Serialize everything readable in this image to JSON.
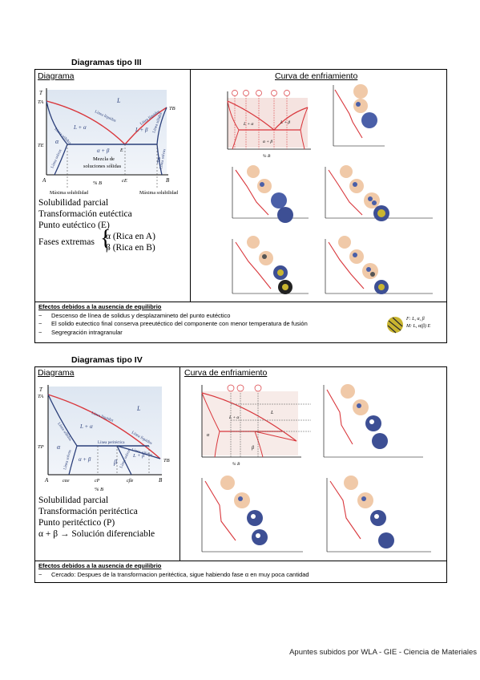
{
  "section3": {
    "title": "Diagramas tipo III",
    "diagram_header": "Diagrama",
    "curve_header": "Curva de enfriamiento",
    "props": [
      "Solubilidad parcial",
      "Transformación eutéctica",
      "Punto eutéctico (E)"
    ],
    "fases_label": "Fases extremas",
    "fases": [
      "α (Rica en A)",
      "β (Rica en B)"
    ],
    "phase_labels": {
      "T": "T",
      "TA": "TA",
      "TB": "TB",
      "TE": "TE",
      "L": "L",
      "L_alpha": "L + α",
      "L_beta": "L + β",
      "alpha": "α",
      "beta": "β",
      "ab": "α + β",
      "E": "E",
      "mezcla": "Mezcla de\nsoluciones sólidas",
      "cE": "cE",
      "A": "A",
      "B": "B",
      "xaxis": "% B",
      "maxsol_left": "Máxima solubilidad",
      "maxsol_right": "Máxima solubilidad",
      "liq_l": "Línea líquidus",
      "liq_r": "Línea líquidus",
      "sol_l": "Línea sólidus",
      "sol_r": "Línea sólidus",
      "solv_l": "Línea solvus",
      "solv_r": "Línea solvus"
    },
    "effects_title": "Efectos debidos a la ausencia de equilibrio",
    "effects": [
      "Descenso de línea de solidus y desplazamineto del punto eutéctico",
      "El solido eutectico final conserva preeutéctico del componente con menor temperatura de fusión",
      "Segregración intragranular"
    ],
    "legend_fp": "F: L, α, β",
    "legend_mp": "M: L, α(β) E"
  },
  "section4": {
    "title": "Diagramas tipo IV",
    "diagram_header": "Diagrama",
    "curve_header": "Curva de enfriamiento",
    "props": [
      "Solubilidad parcial",
      "Transformación peritéctica",
      "Punto peritéctico (P)",
      "α + β → Solución diferenciable"
    ],
    "phase_labels": {
      "T": "T",
      "TA": "TA",
      "TB": "TB",
      "TP": "TP",
      "L": "L",
      "L_alpha": "L + α",
      "L_beta": "L + β",
      "alpha": "α",
      "beta": "β",
      "ab": "α + β",
      "cP": "cP",
      "cae": "cαe",
      "cbe": "cβe",
      "A": "A",
      "B": "B",
      "xaxis": "% B",
      "liq": "Línea líquidus",
      "liq2": "Línea líquidus",
      "sol": "Línea sólidus",
      "sol2": "Línea sólidus",
      "solv": "Línea solvus",
      "solv2": "Línea solvus",
      "peri": "Línea peritéctica"
    },
    "effects_title": "Efectos debidos a la ausencia de equilibrio",
    "effects": [
      "Cercado: Despues de la transformacion peritéctica, sigue habiendo fase α en muy poca cantidad"
    ]
  },
  "footer": "Apuntes subidos por WLA - GIE - Ciencia de Materiales"
}
